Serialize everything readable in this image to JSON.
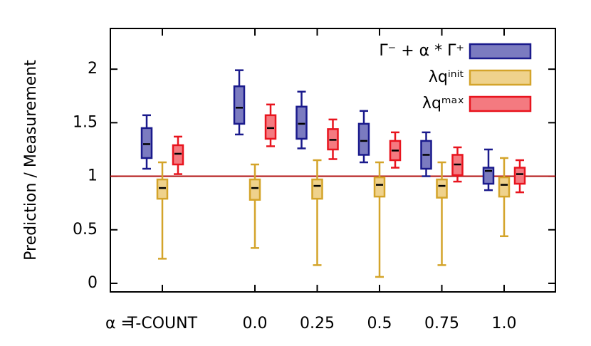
{
  "chart_data": {
    "type": "box",
    "ylabel": "Prediction / Measurement",
    "xlabel": "α =",
    "categories": [
      "T-COUNT",
      "0.0",
      "0.25",
      "0.5",
      "0.75",
      "1.0"
    ],
    "ylim": [
      -0.08,
      2.38
    ],
    "yticks": [
      0,
      0.5,
      1,
      {
        "value": 1.5,
        "label": "1.5"
      },
      2
    ],
    "reference_line": {
      "value": 1,
      "color": "#b01010"
    },
    "legend": "upper right",
    "series": [
      {
        "name": "Γ⁻ + α * Γ⁺",
        "color": "#1a1a8c",
        "fill": "#7b7bc0",
        "low": [
          1.07,
          1.39,
          1.26,
          1.13,
          1.0,
          0.87
        ],
        "q1": [
          1.17,
          1.49,
          1.35,
          1.2,
          1.07,
          0.93
        ],
        "median": [
          1.3,
          1.64,
          1.49,
          1.33,
          1.2,
          1.05
        ],
        "q3": [
          1.45,
          1.84,
          1.65,
          1.49,
          1.33,
          1.08
        ],
        "high": [
          1.57,
          1.99,
          1.79,
          1.61,
          1.41,
          1.25
        ]
      },
      {
        "name": "λqⁱⁿⁱᵗ",
        "color": "#d4a42a",
        "fill": "#efd28c",
        "low": [
          0.23,
          0.33,
          0.17,
          0.06,
          0.17,
          0.44
        ],
        "q1": [
          0.79,
          0.78,
          0.79,
          0.81,
          0.8,
          0.81
        ],
        "median": [
          0.89,
          0.89,
          0.91,
          0.92,
          0.91,
          0.92
        ],
        "q3": [
          0.97,
          0.97,
          0.97,
          0.99,
          0.97,
          0.99
        ],
        "high": [
          1.13,
          1.11,
          1.15,
          1.13,
          1.13,
          1.17
        ]
      },
      {
        "name": "λqᵐᵃˣ",
        "color": "#e8141e",
        "fill": "#f47a80",
        "low": [
          1.02,
          1.28,
          1.16,
          1.08,
          0.95,
          0.85
        ],
        "q1": [
          1.11,
          1.35,
          1.25,
          1.15,
          1.01,
          0.93
        ],
        "median": [
          1.21,
          1.45,
          1.34,
          1.24,
          1.11,
          1.02
        ],
        "q3": [
          1.29,
          1.57,
          1.44,
          1.33,
          1.2,
          1.08
        ],
        "high": [
          1.37,
          1.67,
          1.53,
          1.41,
          1.27,
          1.15
        ]
      }
    ]
  }
}
